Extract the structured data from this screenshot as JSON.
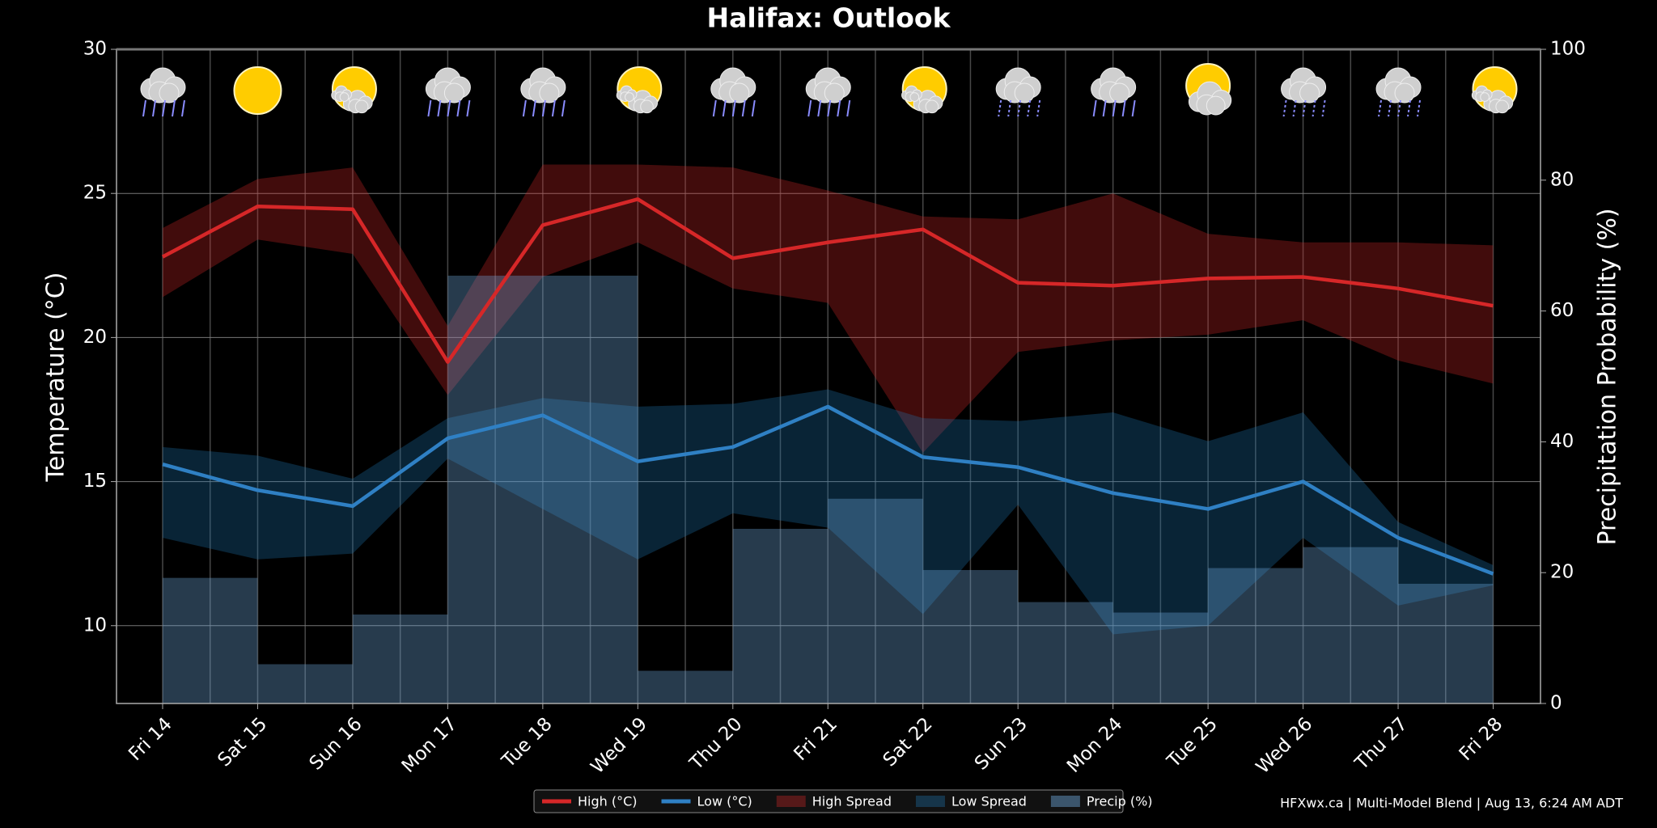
{
  "chart_data": {
    "type": "line",
    "title": "Halifax: Outlook",
    "y_label": "Temperature (°C)",
    "y2_label": "Precipitation Probability (%)",
    "categories": [
      "Fri 14",
      "Sat 15",
      "Sun 16",
      "Mon 17",
      "Tue 18",
      "Wed 19",
      "Thu 20",
      "Fri 21",
      "Sat 22",
      "Sun 23",
      "Mon 24",
      "Tue 25",
      "Wed 26",
      "Thu 27",
      "Fri 28"
    ],
    "ylim": [
      7.3,
      30
    ],
    "yticks": [
      10,
      15,
      20,
      25,
      30
    ],
    "y2lim": [
      0,
      100
    ],
    "y2ticks": [
      0,
      20,
      40,
      60,
      80,
      100
    ],
    "grid": true,
    "legend": "bottom",
    "series": [
      {
        "name": "High (°C)",
        "kind": "line",
        "color": "#d62728",
        "values": [
          22.8,
          24.55,
          24.45,
          19.15,
          23.9,
          24.8,
          22.75,
          23.3,
          23.75,
          21.9,
          21.8,
          22.05,
          22.1,
          21.7,
          21.1
        ]
      },
      {
        "name": "Low (°C)",
        "kind": "line",
        "color": "#2f80c4",
        "values": [
          15.6,
          14.7,
          14.15,
          16.5,
          17.3,
          15.7,
          16.2,
          17.6,
          15.85,
          15.5,
          14.6,
          14.05,
          15.0,
          13.05,
          11.8
        ]
      },
      {
        "name": "High Spread",
        "kind": "band",
        "color": "#d62728",
        "upper": [
          23.8,
          25.5,
          25.9,
          20.4,
          26.0,
          26.0,
          25.9,
          25.1,
          24.2,
          24.1,
          25.0,
          23.6,
          23.3,
          23.3,
          23.2
        ],
        "lower": [
          21.4,
          23.4,
          22.9,
          18.0,
          22.1,
          23.3,
          21.7,
          21.2,
          16.0,
          19.5,
          19.9,
          20.1,
          20.6,
          19.2,
          18.4
        ]
      },
      {
        "name": "Low Spread",
        "kind": "band",
        "color": "#1f77b4",
        "upper": [
          16.2,
          15.9,
          15.1,
          17.2,
          17.9,
          17.6,
          17.7,
          18.2,
          17.2,
          17.1,
          17.4,
          16.4,
          17.4,
          13.6,
          12.1
        ],
        "lower": [
          13.05,
          12.3,
          12.5,
          15.8,
          14.05,
          12.3,
          13.9,
          13.4,
          10.4,
          14.2,
          9.7,
          10.0,
          13.05,
          10.7,
          11.4
        ]
      },
      {
        "name": "Precip (%)",
        "kind": "step",
        "axis": "y2",
        "color": "#6fa8dc",
        "values": [
          19.2,
          6.0,
          13.6,
          65.4,
          65.4,
          5.0,
          26.7,
          31.3,
          20.4,
          15.5,
          13.9,
          20.7,
          23.9,
          18.3,
          18.3
        ]
      }
    ],
    "source": "HFXwx.ca | Multi-Model Blend | Aug 13, 6:24 AM ADT"
  }
}
